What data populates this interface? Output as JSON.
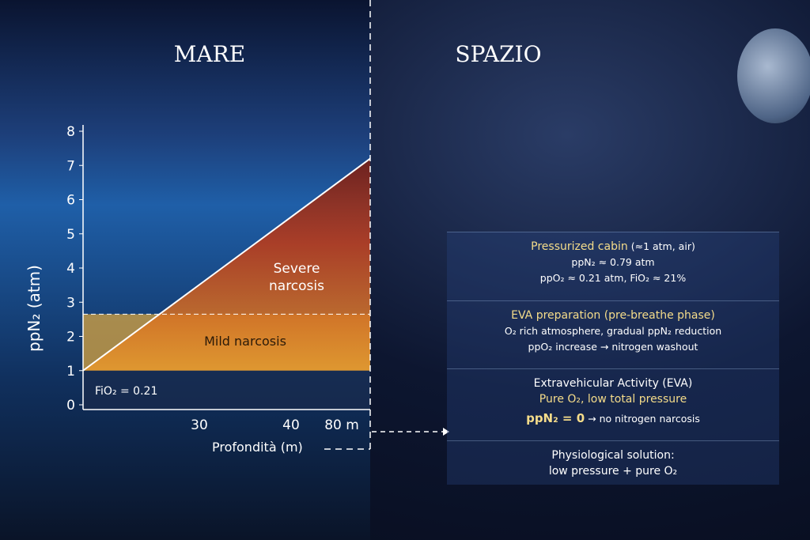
{
  "left": {
    "title": "MARE",
    "graph": {
      "y_label": "ppN₂ (atm)",
      "x_label": "Profondità (m)",
      "ylim": [
        0,
        8
      ],
      "yticks": [
        0,
        1,
        2,
        3,
        4,
        5,
        6,
        7,
        8
      ],
      "x_labels": [
        "30",
        "40",
        "80 m"
      ],
      "line": {
        "y_start": 1,
        "y_end": 7.2
      },
      "zone_boundary": 2.65,
      "fio2_label": "FiO₂ = 0.21",
      "mild_label": "Mild narcosis",
      "severe_label": "Severe narcosis"
    }
  },
  "right": {
    "title": "SPAZIO",
    "panels": [
      {
        "title": "Pressurized cabin",
        "title_note": "(≈1 atm, air)",
        "lines": [
          "ppN₂ ≈ 0.79 atm",
          "ppO₂ ≈ 0.21 atm, FiO₂ ≈ 21%"
        ]
      },
      {
        "title": "EVA preparation (pre-breathe phase)",
        "lines": [
          "O₂ rich atmosphere, gradual ppN₂ reduction",
          "ppO₂ increase → nitrogen washout"
        ]
      },
      {
        "title": "Extravehicular Activity (EVA)",
        "lines": [
          "Pure O₂, low total pressure"
        ],
        "highlight": "ppN₂ = 0",
        "highlight_note": "→ no nitrogen narcosis"
      },
      {
        "title": "Physiological solution:",
        "lines": [
          "low pressure + pure O₂"
        ]
      }
    ]
  }
}
